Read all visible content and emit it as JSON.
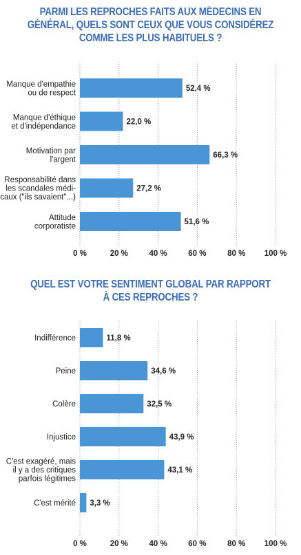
{
  "chart_data": [
    {
      "type": "bar",
      "orientation": "horizontal",
      "title_lines": [
        "PARMI LES REPROCHES FAITS AUX MÉDECINS EN",
        "GÉNÉRAL, QUELS SONT CEUX QUE VOUS CONSIDÉREZ",
        "COMME LES PLUS HABITUELS ?"
      ],
      "categories": [
        [
          "Manque d'empathie",
          "ou de respect"
        ],
        [
          "Manque d'éthique",
          "et d'indépendance"
        ],
        [
          "Motivation par",
          "l'argent"
        ],
        [
          "Responsabilité dans",
          "les scandales médi-",
          "caux (\"ils savaient\"...)"
        ],
        [
          "Attitude",
          "corporatiste"
        ]
      ],
      "values": [
        52.4,
        22.0,
        66.3,
        27.2,
        51.6
      ],
      "value_labels": [
        "52,4 %",
        "22,0 %",
        "66,3 %",
        "27,2 %",
        "51,6 %"
      ],
      "xlim": [
        0,
        100
      ],
      "ticks": [
        "0 %",
        "20 %",
        "40 %",
        "60 %",
        "80 %",
        "100 %"
      ],
      "grid": true,
      "bar_color": "#4a95d6"
    },
    {
      "type": "bar",
      "orientation": "horizontal",
      "title_lines": [
        "QUEL EST VOTRE SENTIMENT GLOBAL PAR RAPPORT",
        "À CES REPROCHES ?"
      ],
      "categories": [
        [
          "Indifférence"
        ],
        [
          "Peine"
        ],
        [
          "Colère"
        ],
        [
          "Injustice"
        ],
        [
          "C'est exagéré, mais",
          "il y a des critiques",
          "parfois légitimes"
        ],
        [
          "C'est mérité"
        ]
      ],
      "values": [
        11.8,
        34.6,
        32.5,
        43.9,
        43.1,
        3.3
      ],
      "value_labels": [
        "11,8 %",
        "34,6 %",
        "32,5 %",
        "43,9 %",
        "43,1 %",
        "3,3 %"
      ],
      "xlim": [
        0,
        100
      ],
      "ticks": [
        "0 %",
        "20 %",
        "40 %",
        "60 %",
        "80 %",
        "100 %"
      ],
      "grid": true,
      "bar_color": "#4a95d6"
    }
  ]
}
